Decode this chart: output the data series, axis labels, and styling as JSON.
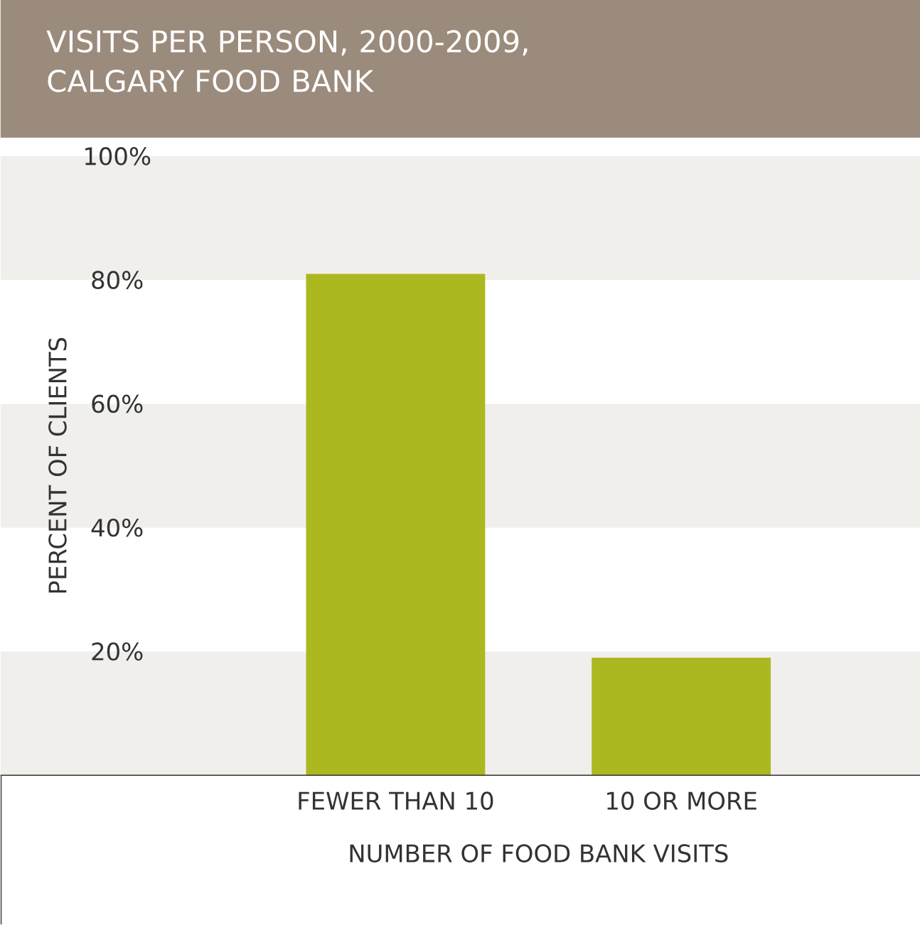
{
  "chart_data": {
    "type": "bar",
    "title": "VISITS PER PERSON, 2000-2009, CALGARY FOOD BANK",
    "xlabel": "NUMBER OF FOOD BANK VISITS",
    "ylabel": "PERCENT OF CLIENTS",
    "categories": [
      "FEWER THAN 10",
      "10 OR MORE"
    ],
    "values": [
      81,
      19
    ],
    "color": "#acb820",
    "ylim": [
      0,
      100
    ],
    "yticks": [
      {
        "value": 20,
        "label": "20%"
      },
      {
        "value": 40,
        "label": "40%"
      },
      {
        "value": 60,
        "label": "60%"
      },
      {
        "value": 80,
        "label": "80%"
      },
      {
        "value": 100,
        "label": "100%"
      }
    ],
    "bands": [
      {
        "axis": "y",
        "from": 0,
        "to": 20,
        "color": "#f1efec"
      },
      {
        "axis": "y",
        "from": 40,
        "to": 60,
        "color": "#f1efec"
      },
      {
        "axis": "y",
        "from": 80,
        "to": 100,
        "color": "#f1efec"
      }
    ],
    "grid": false
  }
}
